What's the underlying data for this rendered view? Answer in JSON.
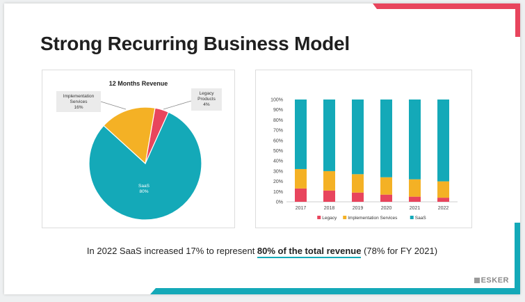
{
  "slide": {
    "title": "Strong Recurring Business Model",
    "caption_pre": "In 2022 SaaS increased 17% to represent ",
    "caption_emph": "80% of the total revenue",
    "caption_post": " (78% for FY 2021)",
    "logo": "ESKER",
    "accent_colors": {
      "red": "#e8455d",
      "teal": "#14a9b8"
    }
  },
  "chart_data": [
    {
      "type": "pie",
      "title": "12 Months Revenue",
      "slices": [
        {
          "name": "Legacy",
          "label_lines": [
            "Legacy",
            "Products",
            "4%"
          ],
          "value": 4,
          "color": "#e8455d"
        },
        {
          "name": "SaaS",
          "label_lines": [
            "SaaS",
            "80%"
          ],
          "value": 80,
          "color": "#14a9b8"
        },
        {
          "name": "Implementation Services",
          "label_lines": [
            "Implementation",
            "Services",
            "16%"
          ],
          "value": 16,
          "color": "#f4b125"
        }
      ]
    },
    {
      "type": "bar",
      "stacked": true,
      "categories": [
        "2017",
        "2018",
        "2019",
        "2020",
        "2021",
        "2022"
      ],
      "ylim": [
        0,
        100
      ],
      "yticks": [
        "0%",
        "10%",
        "20%",
        "30%",
        "40%",
        "50%",
        "60%",
        "70%",
        "80%",
        "90%",
        "100%"
      ],
      "series": [
        {
          "name": "Legacy",
          "color": "#e8455d",
          "values": [
            13,
            11,
            9,
            7,
            5,
            4
          ]
        },
        {
          "name": "Implementation Services",
          "color": "#f4b125",
          "values": [
            19,
            19,
            18,
            17,
            17,
            16
          ]
        },
        {
          "name": "SaaS",
          "color": "#14a9b8",
          "values": [
            68,
            70,
            73,
            76,
            78,
            80
          ]
        }
      ],
      "legend_position": "bottom"
    }
  ]
}
